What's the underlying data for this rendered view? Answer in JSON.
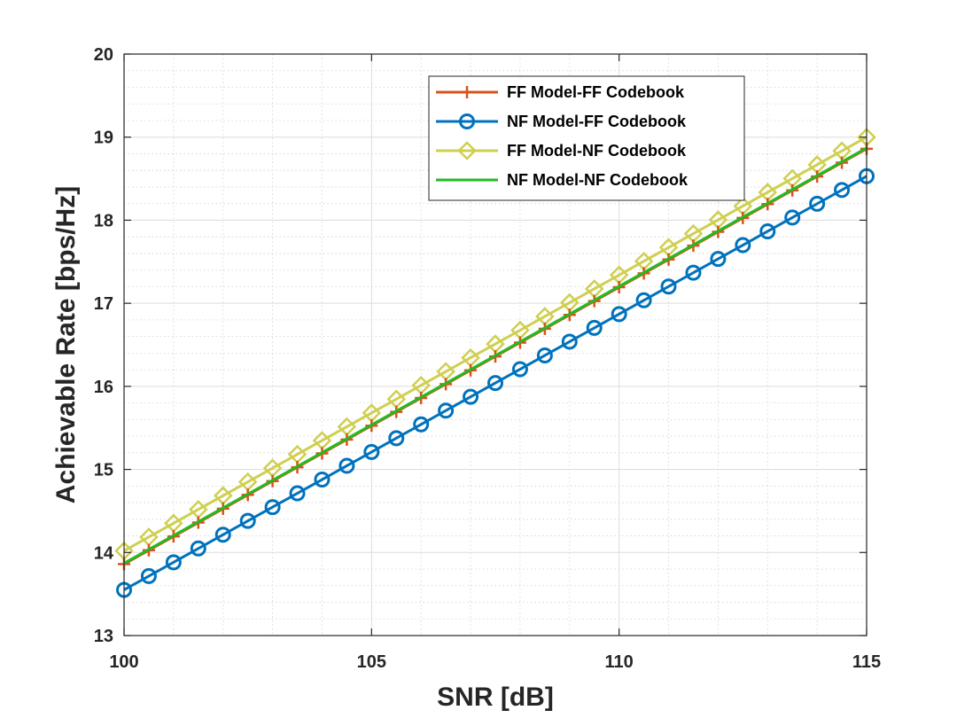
{
  "chart_data": {
    "type": "line",
    "title": "",
    "xlabel": "SNR [dB]",
    "ylabel": "Achievable Rate [bps/Hz]",
    "xlim": [
      100,
      115
    ],
    "ylim": [
      13,
      20
    ],
    "xticks": [
      100,
      105,
      110,
      115
    ],
    "yticks": [
      13,
      14,
      15,
      16,
      17,
      18,
      19,
      20
    ],
    "grid": true,
    "minor_grid": true,
    "legend_position": "top-right",
    "x": {
      "start": 100,
      "end": 115,
      "step": 0.5
    },
    "series": [
      {
        "name": "FF Model-FF Codebook",
        "marker": "plus",
        "color": "#D95319",
        "start": 13.86,
        "end": 18.86
      },
      {
        "name": "NF Model-FF Codebook",
        "marker": "circle",
        "color": "#0072BD",
        "start": 13.55,
        "end": 18.53
      },
      {
        "name": "FF Model-NF Codebook",
        "marker": "diamond",
        "color": "#CFCF50",
        "start": 14.02,
        "end": 19.0
      },
      {
        "name": "NF Model-NF Codebook",
        "marker": "none",
        "color": "#22BB22",
        "start": 13.87,
        "end": 18.87
      }
    ]
  }
}
